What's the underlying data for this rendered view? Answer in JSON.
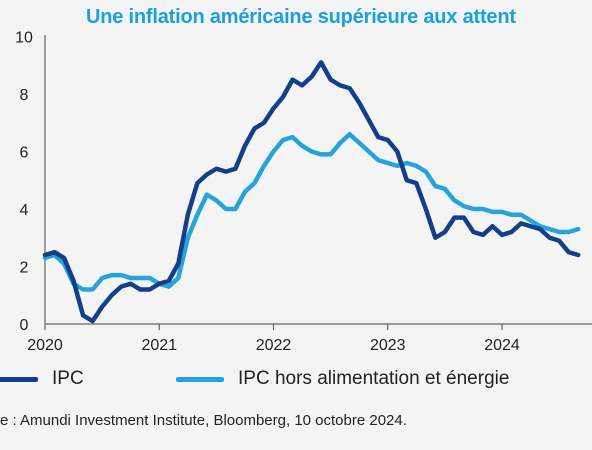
{
  "chart_data": {
    "type": "line",
    "title": "Une inflation américaine supérieure aux attent",
    "ylim": [
      0,
      10
    ],
    "y_ticks": [
      "0",
      "2",
      "4",
      "6",
      "8",
      "10"
    ],
    "x_ticks": [
      "2020",
      "2021",
      "2022",
      "2023",
      "2024"
    ],
    "xlim": [
      "2020-01",
      "2024-09"
    ],
    "grid": false,
    "legend_position": "bottom",
    "x": [
      "2020-01",
      "2020-02",
      "2020-03",
      "2020-04",
      "2020-05",
      "2020-06",
      "2020-07",
      "2020-08",
      "2020-09",
      "2020-10",
      "2020-11",
      "2020-12",
      "2021-01",
      "2021-02",
      "2021-03",
      "2021-04",
      "2021-05",
      "2021-06",
      "2021-07",
      "2021-08",
      "2021-09",
      "2021-10",
      "2021-11",
      "2021-12",
      "2022-01",
      "2022-02",
      "2022-03",
      "2022-04",
      "2022-05",
      "2022-06",
      "2022-07",
      "2022-08",
      "2022-09",
      "2022-10",
      "2022-11",
      "2022-12",
      "2023-01",
      "2023-02",
      "2023-03",
      "2023-04",
      "2023-05",
      "2023-06",
      "2023-07",
      "2023-08",
      "2023-09",
      "2023-10",
      "2023-11",
      "2023-12",
      "2024-01",
      "2024-02",
      "2024-03",
      "2024-04",
      "2024-05",
      "2024-06",
      "2024-07",
      "2024-08",
      "2024-09"
    ],
    "series": [
      {
        "name": "IPC",
        "color": "#123f8a",
        "values": [
          2.4,
          2.5,
          2.3,
          1.5,
          0.3,
          0.1,
          0.6,
          1.0,
          1.3,
          1.4,
          1.2,
          1.2,
          1.4,
          1.5,
          2.1,
          3.8,
          4.9,
          5.2,
          5.4,
          5.3,
          5.4,
          6.2,
          6.8,
          7.0,
          7.5,
          7.9,
          8.5,
          8.3,
          8.6,
          9.1,
          8.5,
          8.3,
          8.2,
          7.7,
          7.1,
          6.5,
          6.4,
          6.0,
          5.0,
          4.9,
          4.0,
          3.0,
          3.2,
          3.7,
          3.7,
          3.2,
          3.1,
          3.4,
          3.1,
          3.2,
          3.5,
          3.4,
          3.3,
          3.0,
          2.9,
          2.5,
          2.4
        ]
      },
      {
        "name": "IPC hors alimentation et énergie",
        "color": "#27a3dc",
        "values": [
          2.3,
          2.4,
          2.1,
          1.4,
          1.2,
          1.2,
          1.6,
          1.7,
          1.7,
          1.6,
          1.6,
          1.6,
          1.4,
          1.3,
          1.6,
          3.0,
          3.8,
          4.5,
          4.3,
          4.0,
          4.0,
          4.6,
          4.9,
          5.5,
          6.0,
          6.4,
          6.5,
          6.2,
          6.0,
          5.9,
          5.9,
          6.3,
          6.6,
          6.3,
          6.0,
          5.7,
          5.6,
          5.5,
          5.6,
          5.5,
          5.3,
          4.8,
          4.7,
          4.3,
          4.1,
          4.0,
          4.0,
          3.9,
          3.9,
          3.8,
          3.8,
          3.6,
          3.4,
          3.3,
          3.2,
          3.2,
          3.3
        ]
      }
    ]
  },
  "source_note": "e : Amundi Investment Institute, Bloomberg, 10 octobre 2024."
}
